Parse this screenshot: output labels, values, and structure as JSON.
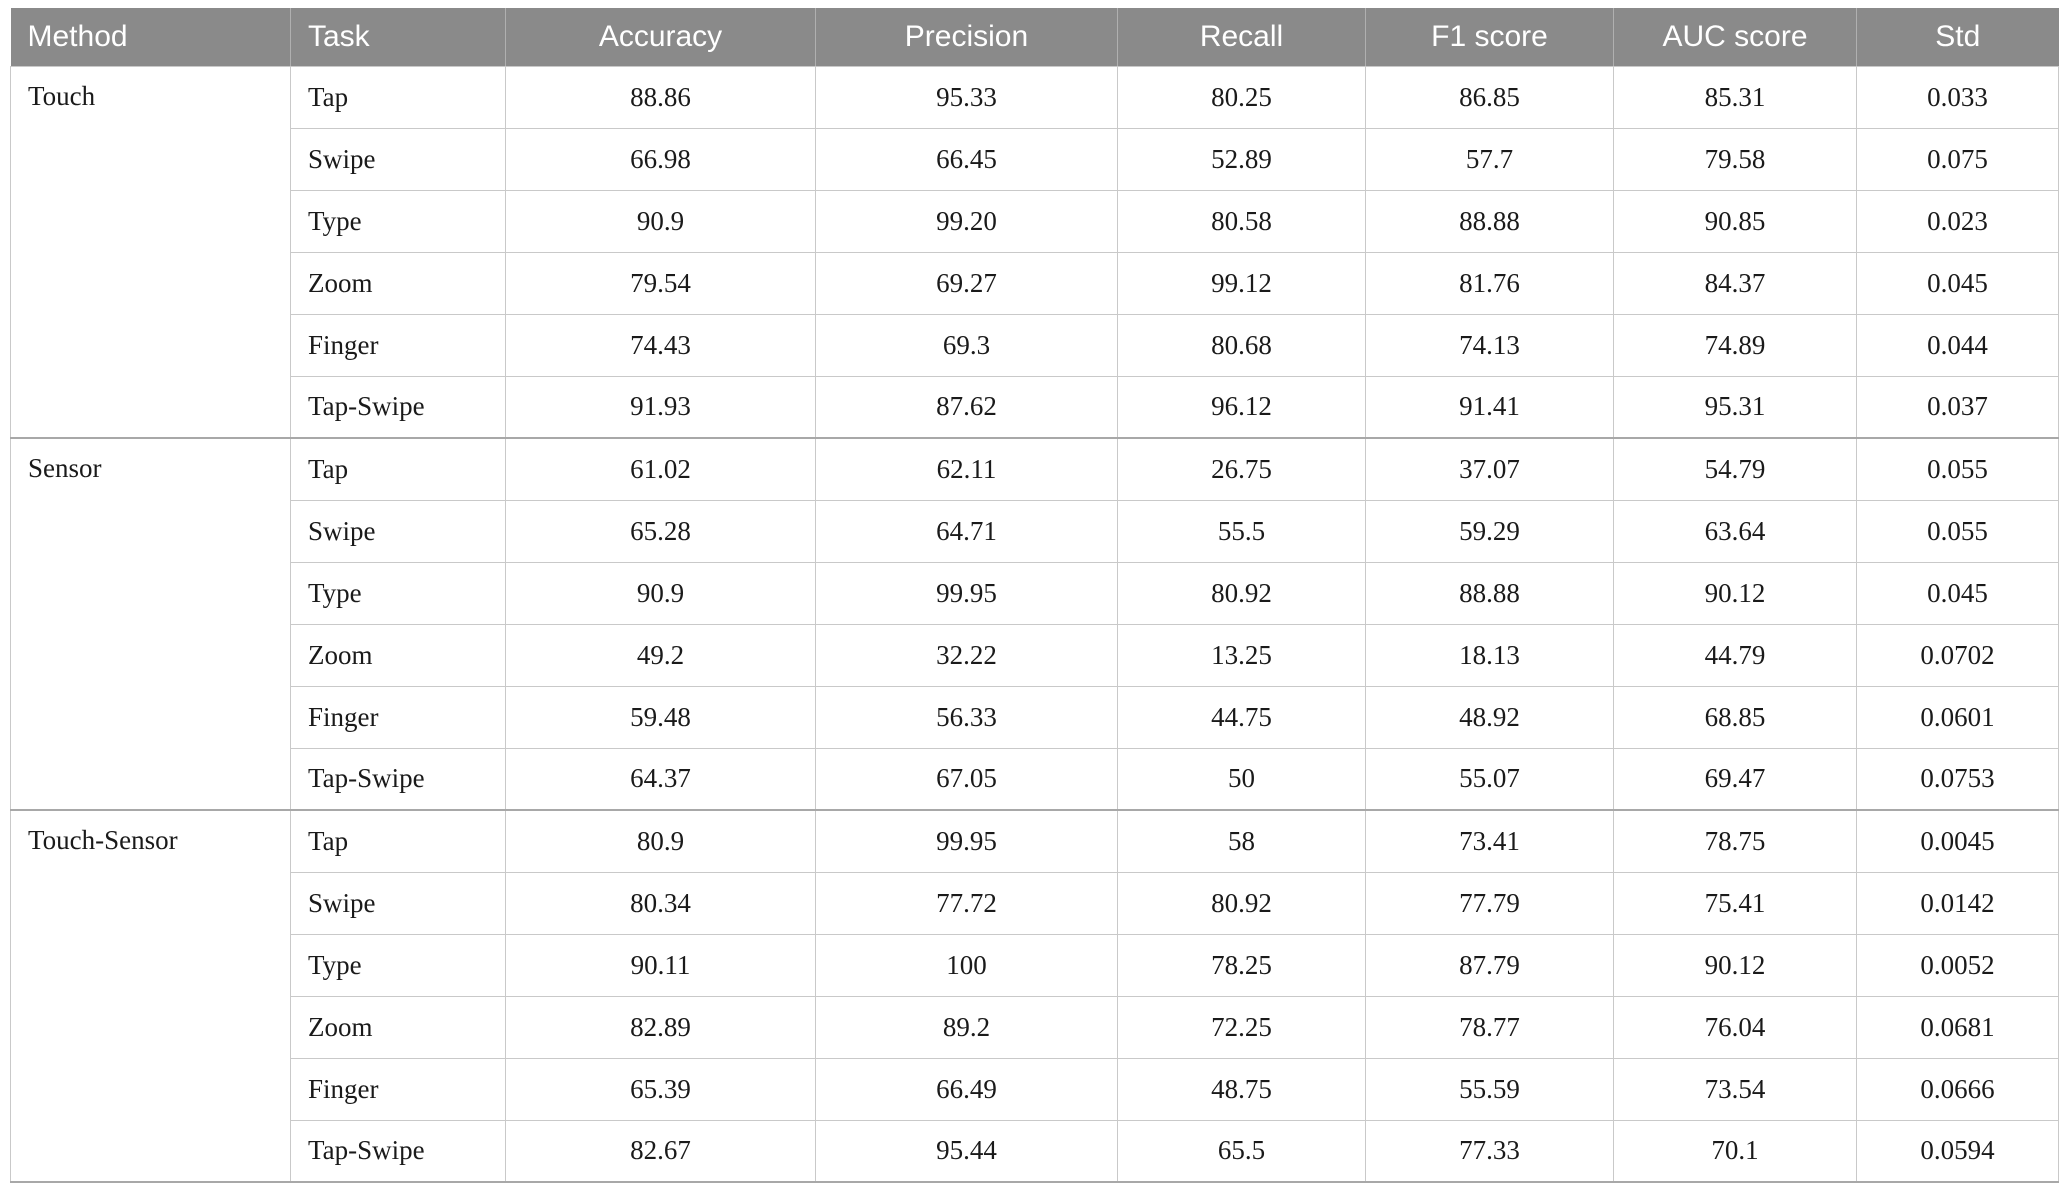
{
  "colors": {
    "header_bg": "#8a8a8a",
    "header_text": "#ffffff",
    "border": "#c9c9c9",
    "group_border": "#a8a8a8",
    "body_text": "#1a1a1a"
  },
  "table": {
    "columns": [
      "Method",
      "Task",
      "Accuracy",
      "Precision",
      "Recall",
      "F1 score",
      "AUC score",
      "Std"
    ],
    "column_keys": [
      "method",
      "task",
      "accuracy",
      "precision",
      "recall",
      "f1-score",
      "auc-score",
      "std"
    ],
    "groups": [
      {
        "method": "Touch",
        "rows": [
          {
            "task": "Tap",
            "values": [
              "88.86",
              "95.33",
              "80.25",
              "86.85",
              "85.31",
              "0.033"
            ]
          },
          {
            "task": "Swipe",
            "values": [
              "66.98",
              "66.45",
              "52.89",
              "57.7",
              "79.58",
              "0.075"
            ]
          },
          {
            "task": "Type",
            "values": [
              "90.9",
              "99.20",
              "80.58",
              "88.88",
              "90.85",
              "0.023"
            ]
          },
          {
            "task": "Zoom",
            "values": [
              "79.54",
              "69.27",
              "99.12",
              "81.76",
              "84.37",
              "0.045"
            ]
          },
          {
            "task": "Finger",
            "values": [
              "74.43",
              "69.3",
              "80.68",
              "74.13",
              "74.89",
              "0.044"
            ]
          },
          {
            "task": "Tap-Swipe",
            "values": [
              "91.93",
              "87.62",
              "96.12",
              "91.41",
              "95.31",
              "0.037"
            ]
          }
        ]
      },
      {
        "method": "Sensor",
        "rows": [
          {
            "task": "Tap",
            "values": [
              "61.02",
              "62.11",
              "26.75",
              "37.07",
              "54.79",
              "0.055"
            ]
          },
          {
            "task": "Swipe",
            "values": [
              "65.28",
              "64.71",
              "55.5",
              "59.29",
              "63.64",
              "0.055"
            ]
          },
          {
            "task": "Type",
            "values": [
              "90.9",
              "99.95",
              "80.92",
              "88.88",
              "90.12",
              "0.045"
            ]
          },
          {
            "task": "Zoom",
            "values": [
              "49.2",
              "32.22",
              "13.25",
              "18.13",
              "44.79",
              "0.0702"
            ]
          },
          {
            "task": "Finger",
            "values": [
              "59.48",
              "56.33",
              "44.75",
              "48.92",
              "68.85",
              "0.0601"
            ]
          },
          {
            "task": "Tap-Swipe",
            "values": [
              "64.37",
              "67.05",
              "50",
              "55.07",
              "69.47",
              "0.0753"
            ]
          }
        ]
      },
      {
        "method": "Touch-Sensor",
        "rows": [
          {
            "task": "Tap",
            "values": [
              "80.9",
              "99.95",
              "58",
              "73.41",
              "78.75",
              "0.0045"
            ]
          },
          {
            "task": "Swipe",
            "values": [
              "80.34",
              "77.72",
              "80.92",
              "77.79",
              "75.41",
              "0.0142"
            ]
          },
          {
            "task": "Type",
            "values": [
              "90.11",
              "100",
              "78.25",
              "87.79",
              "90.12",
              "0.0052"
            ]
          },
          {
            "task": "Zoom",
            "values": [
              "82.89",
              "89.2",
              "72.25",
              "78.77",
              "76.04",
              "0.0681"
            ]
          },
          {
            "task": "Finger",
            "values": [
              "65.39",
              "66.49",
              "48.75",
              "55.59",
              "73.54",
              "0.0666"
            ]
          },
          {
            "task": "Tap-Swipe",
            "values": [
              "82.67",
              "95.44",
              "65.5",
              "77.33",
              "70.1",
              "0.0594"
            ]
          }
        ]
      }
    ]
  }
}
